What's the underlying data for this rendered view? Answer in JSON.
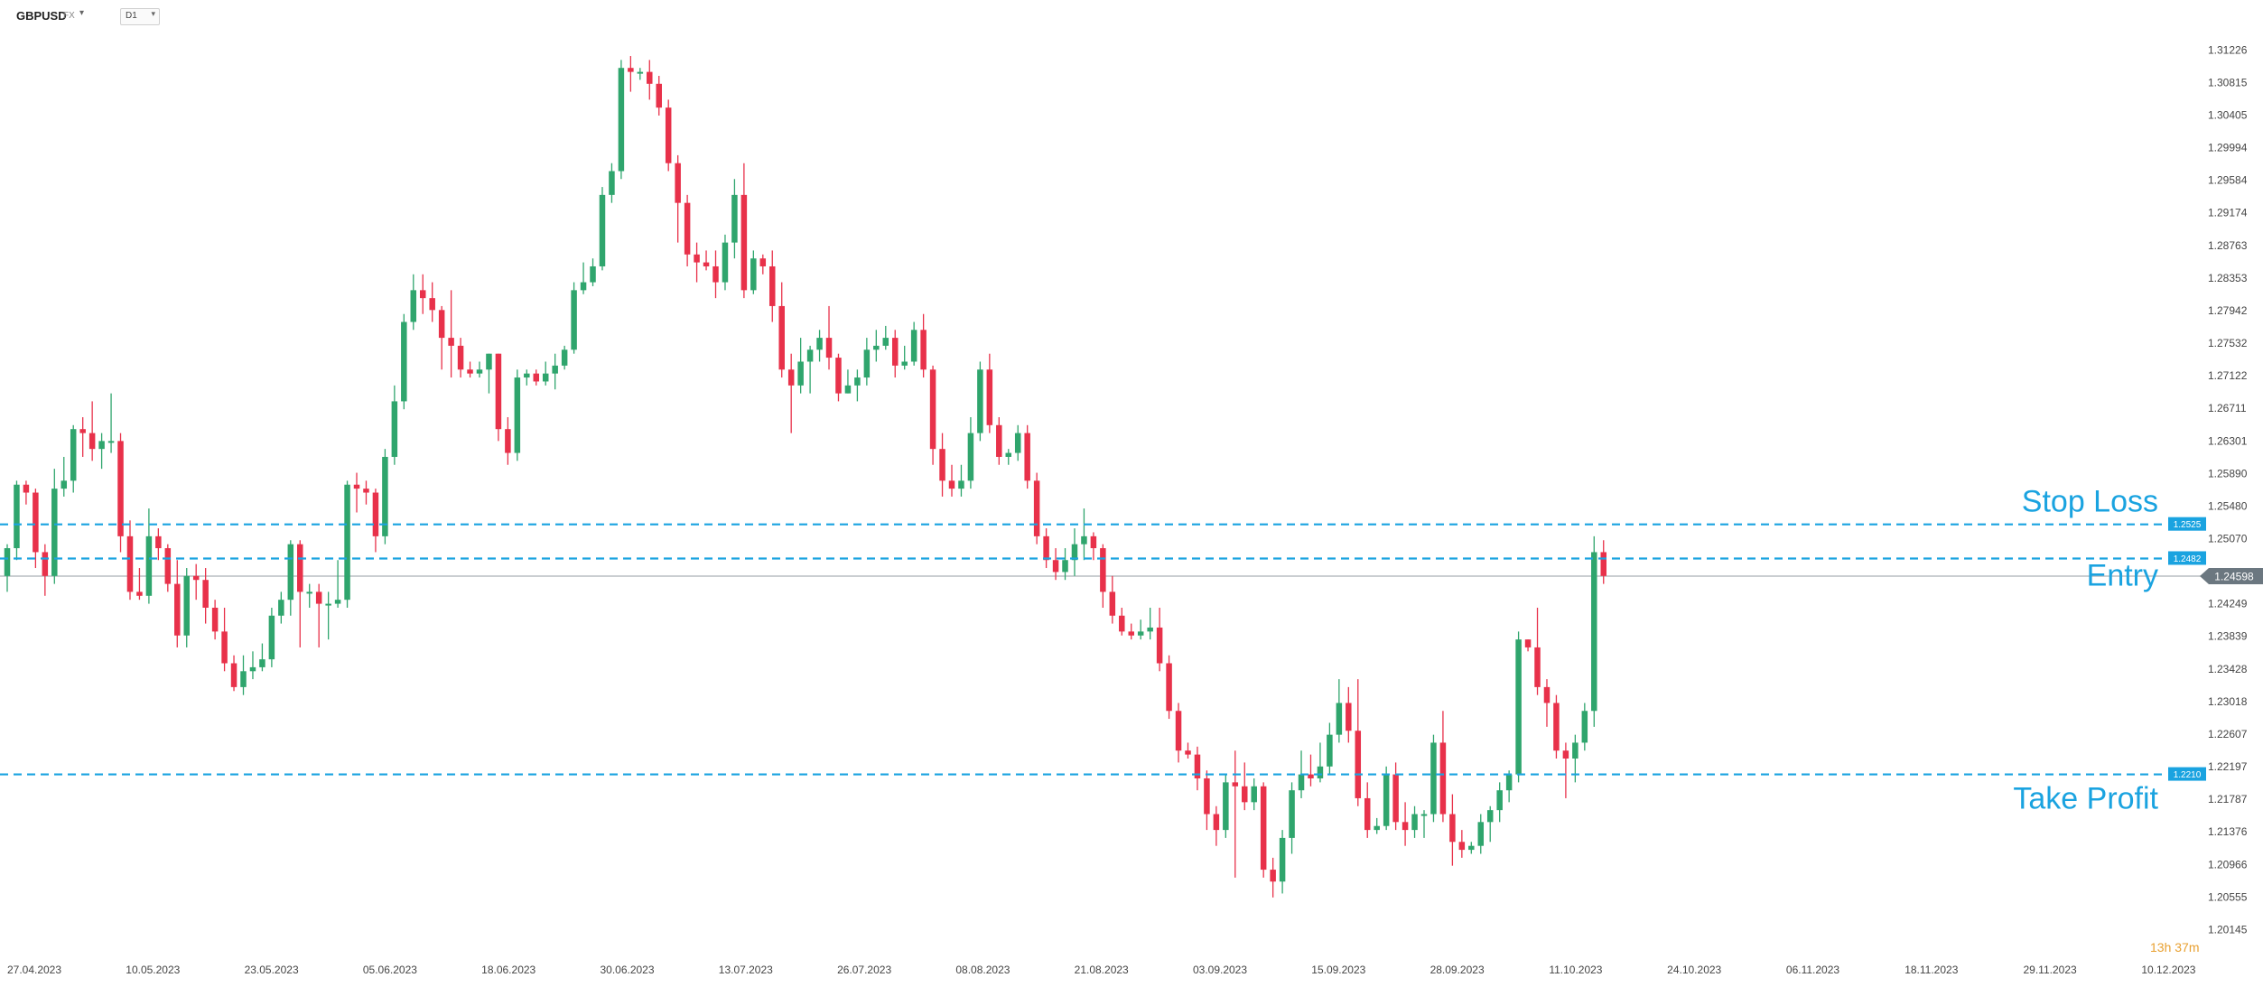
{
  "header": {
    "symbol": "GBPUSD",
    "symbol_type": "FX",
    "timeframe": "D1"
  },
  "countdown": "13h 37m",
  "colors": {
    "up": "#2fa56d",
    "down": "#e8314a",
    "level_line": "#1aa3e0",
    "price_tag_bg": "#6b7780"
  },
  "chart_data": {
    "type": "candlestick",
    "y_ticks": [
      "1.31226",
      "1.30815",
      "1.30405",
      "1.29994",
      "1.29584",
      "1.29174",
      "1.28763",
      "1.28353",
      "1.27942",
      "1.27532",
      "1.27122",
      "1.26711",
      "1.26301",
      "1.25890",
      "1.25480",
      "1.25070",
      "1.24249",
      "1.23839",
      "1.23428",
      "1.23018",
      "1.22607",
      "1.22197",
      "1.21787",
      "1.21376",
      "1.20966",
      "1.20555",
      "1.20145"
    ],
    "x_ticks": [
      "27.04.2023",
      "10.05.2023",
      "23.05.2023",
      "05.06.2023",
      "18.06.2023",
      "30.06.2023",
      "13.07.2023",
      "26.07.2023",
      "08.08.2023",
      "21.08.2023",
      "03.09.2023",
      "15.09.2023",
      "28.09.2023",
      "11.10.2023",
      "24.10.2023",
      "06.11.2023",
      "18.11.2023",
      "29.11.2023",
      "10.12.2023"
    ],
    "ylim": [
      1.2015,
      1.3123
    ],
    "current_price": {
      "value": 1.24598,
      "label": "1.24598"
    },
    "levels": [
      {
        "name": "Stop Loss",
        "value": 1.2525,
        "tag": "1.2525"
      },
      {
        "name": "Entry",
        "value": 1.2482,
        "tag": "1.2482"
      },
      {
        "name": "Take Profit",
        "value": 1.221,
        "tag": "1.2210"
      }
    ],
    "candles": [
      [
        1.246,
        1.2495,
        1.244,
        1.25
      ],
      [
        1.2495,
        1.2575,
        1.248,
        1.258
      ],
      [
        1.2575,
        1.2565,
        1.255,
        1.258
      ],
      [
        1.2565,
        1.249,
        1.247,
        1.257
      ],
      [
        1.249,
        1.246,
        1.2435,
        1.25
      ],
      [
        1.246,
        1.257,
        1.245,
        1.2595
      ],
      [
        1.257,
        1.258,
        1.256,
        1.261
      ],
      [
        1.258,
        1.2645,
        1.2565,
        1.265
      ],
      [
        1.2645,
        1.264,
        1.261,
        1.266
      ],
      [
        1.264,
        1.262,
        1.2605,
        1.268
      ],
      [
        1.262,
        1.263,
        1.2595,
        1.264
      ],
      [
        1.263,
        1.263,
        1.2615,
        1.269
      ],
      [
        1.263,
        1.251,
        1.249,
        1.264
      ],
      [
        1.251,
        1.244,
        1.243,
        1.253
      ],
      [
        1.244,
        1.2435,
        1.243,
        1.247
      ],
      [
        1.2435,
        1.251,
        1.2425,
        1.2545
      ],
      [
        1.251,
        1.2495,
        1.248,
        1.252
      ],
      [
        1.2495,
        1.245,
        1.244,
        1.25
      ],
      [
        1.245,
        1.2385,
        1.237,
        1.248
      ],
      [
        1.2385,
        1.246,
        1.237,
        1.247
      ],
      [
        1.246,
        1.2455,
        1.243,
        1.2475
      ],
      [
        1.2455,
        1.242,
        1.24,
        1.247
      ],
      [
        1.242,
        1.239,
        1.238,
        1.243
      ],
      [
        1.239,
        1.235,
        1.234,
        1.242
      ],
      [
        1.235,
        1.232,
        1.2315,
        1.236
      ],
      [
        1.232,
        1.234,
        1.231,
        1.236
      ],
      [
        1.234,
        1.2345,
        1.233,
        1.2365
      ],
      [
        1.2345,
        1.2355,
        1.234,
        1.2375
      ],
      [
        1.2355,
        1.241,
        1.2345,
        1.242
      ],
      [
        1.241,
        1.243,
        1.24,
        1.244
      ],
      [
        1.243,
        1.25,
        1.241,
        1.2505
      ],
      [
        1.25,
        1.244,
        1.237,
        1.2505
      ],
      [
        1.244,
        1.244,
        1.242,
        1.245
      ],
      [
        1.244,
        1.2425,
        1.237,
        1.245
      ],
      [
        1.2425,
        1.2425,
        1.238,
        1.244
      ],
      [
        1.2425,
        1.243,
        1.242,
        1.248
      ],
      [
        1.243,
        1.2575,
        1.242,
        1.258
      ],
      [
        1.2575,
        1.257,
        1.254,
        1.259
      ],
      [
        1.257,
        1.2565,
        1.255,
        1.258
      ],
      [
        1.2565,
        1.251,
        1.249,
        1.257
      ],
      [
        1.251,
        1.261,
        1.25,
        1.262
      ],
      [
        1.261,
        1.268,
        1.26,
        1.27
      ],
      [
        1.268,
        1.278,
        1.267,
        1.279
      ],
      [
        1.278,
        1.282,
        1.277,
        1.284
      ],
      [
        1.282,
        1.281,
        1.279,
        1.284
      ],
      [
        1.281,
        1.2795,
        1.278,
        1.283
      ],
      [
        1.2795,
        1.276,
        1.272,
        1.28
      ],
      [
        1.276,
        1.275,
        1.271,
        1.282
      ],
      [
        1.275,
        1.272,
        1.271,
        1.276
      ],
      [
        1.272,
        1.2715,
        1.271,
        1.273
      ],
      [
        1.2715,
        1.272,
        1.271,
        1.273
      ],
      [
        1.272,
        1.274,
        1.269,
        1.274
      ],
      [
        1.274,
        1.2645,
        1.263,
        1.274
      ],
      [
        1.2645,
        1.2615,
        1.26,
        1.266
      ],
      [
        1.2615,
        1.271,
        1.2605,
        1.272
      ],
      [
        1.271,
        1.2715,
        1.27,
        1.272
      ],
      [
        1.2715,
        1.2705,
        1.27,
        1.272
      ],
      [
        1.2705,
        1.2715,
        1.27,
        1.273
      ],
      [
        1.2715,
        1.2725,
        1.2695,
        1.274
      ],
      [
        1.2725,
        1.2745,
        1.272,
        1.275
      ],
      [
        1.2745,
        1.282,
        1.274,
        1.283
      ],
      [
        1.282,
        1.283,
        1.2815,
        1.2855
      ],
      [
        1.283,
        1.285,
        1.2825,
        1.286
      ],
      [
        1.285,
        1.294,
        1.2845,
        1.295
      ],
      [
        1.294,
        1.297,
        1.293,
        1.298
      ],
      [
        1.297,
        1.31,
        1.296,
        1.311
      ],
      [
        1.31,
        1.3095,
        1.307,
        1.3115
      ],
      [
        1.3095,
        1.3095,
        1.3085,
        1.31
      ],
      [
        1.3095,
        1.308,
        1.306,
        1.311
      ],
      [
        1.308,
        1.305,
        1.304,
        1.309
      ],
      [
        1.305,
        1.298,
        1.297,
        1.306
      ],
      [
        1.298,
        1.293,
        1.288,
        1.299
      ],
      [
        1.293,
        1.2865,
        1.285,
        1.294
      ],
      [
        1.2865,
        1.2855,
        1.283,
        1.288
      ],
      [
        1.2855,
        1.285,
        1.2845,
        1.287
      ],
      [
        1.285,
        1.283,
        1.281,
        1.287
      ],
      [
        1.283,
        1.288,
        1.282,
        1.289
      ],
      [
        1.288,
        1.294,
        1.286,
        1.296
      ],
      [
        1.294,
        1.282,
        1.281,
        1.298
      ],
      [
        1.282,
        1.286,
        1.2815,
        1.287
      ],
      [
        1.286,
        1.285,
        1.284,
        1.2865
      ],
      [
        1.285,
        1.28,
        1.278,
        1.287
      ],
      [
        1.28,
        1.272,
        1.271,
        1.283
      ],
      [
        1.272,
        1.27,
        1.264,
        1.274
      ],
      [
        1.27,
        1.273,
        1.269,
        1.276
      ],
      [
        1.273,
        1.2745,
        1.269,
        1.275
      ],
      [
        1.2745,
        1.276,
        1.273,
        1.277
      ],
      [
        1.276,
        1.2735,
        1.272,
        1.28
      ],
      [
        1.2735,
        1.269,
        1.268,
        1.274
      ],
      [
        1.269,
        1.27,
        1.269,
        1.272
      ],
      [
        1.27,
        1.271,
        1.268,
        1.272
      ],
      [
        1.271,
        1.2745,
        1.27,
        1.276
      ],
      [
        1.2745,
        1.275,
        1.273,
        1.277
      ],
      [
        1.275,
        1.276,
        1.2745,
        1.2775
      ],
      [
        1.276,
        1.2725,
        1.271,
        1.277
      ],
      [
        1.2725,
        1.273,
        1.272,
        1.275
      ],
      [
        1.273,
        1.277,
        1.2725,
        1.278
      ],
      [
        1.277,
        1.272,
        1.271,
        1.279
      ],
      [
        1.272,
        1.262,
        1.26,
        1.2725
      ],
      [
        1.262,
        1.258,
        1.256,
        1.264
      ],
      [
        1.258,
        1.257,
        1.256,
        1.26
      ],
      [
        1.257,
        1.258,
        1.256,
        1.26
      ],
      [
        1.258,
        1.264,
        1.257,
        1.266
      ],
      [
        1.264,
        1.272,
        1.263,
        1.273
      ],
      [
        1.272,
        1.265,
        1.264,
        1.274
      ],
      [
        1.265,
        1.261,
        1.26,
        1.266
      ],
      [
        1.261,
        1.2615,
        1.26,
        1.262
      ],
      [
        1.2615,
        1.264,
        1.2605,
        1.265
      ],
      [
        1.264,
        1.258,
        1.257,
        1.265
      ],
      [
        1.258,
        1.251,
        1.25,
        1.259
      ],
      [
        1.251,
        1.248,
        1.247,
        1.252
      ],
      [
        1.248,
        1.2465,
        1.2455,
        1.2495
      ],
      [
        1.2465,
        1.248,
        1.2455,
        1.2495
      ],
      [
        1.248,
        1.25,
        1.246,
        1.252
      ],
      [
        1.25,
        1.251,
        1.248,
        1.2545
      ],
      [
        1.251,
        1.2495,
        1.248,
        1.2515
      ],
      [
        1.2495,
        1.244,
        1.242,
        1.25
      ],
      [
        1.244,
        1.241,
        1.24,
        1.246
      ],
      [
        1.241,
        1.239,
        1.2385,
        1.242
      ],
      [
        1.239,
        1.2385,
        1.238,
        1.24
      ],
      [
        1.2385,
        1.239,
        1.238,
        1.2405
      ],
      [
        1.239,
        1.2395,
        1.238,
        1.242
      ],
      [
        1.2395,
        1.235,
        1.234,
        1.242
      ],
      [
        1.235,
        1.229,
        1.228,
        1.236
      ],
      [
        1.229,
        1.224,
        1.2225,
        1.23
      ],
      [
        1.224,
        1.2235,
        1.223,
        1.225
      ],
      [
        1.2235,
        1.2205,
        1.219,
        1.2245
      ],
      [
        1.2205,
        1.216,
        1.214,
        1.2215
      ],
      [
        1.216,
        1.214,
        1.212,
        1.217
      ],
      [
        1.214,
        1.22,
        1.213,
        1.221
      ],
      [
        1.22,
        1.2195,
        1.208,
        1.224
      ],
      [
        1.2195,
        1.2175,
        1.2165,
        1.2225
      ],
      [
        1.2175,
        1.2195,
        1.2165,
        1.2205
      ],
      [
        1.2195,
        1.209,
        1.208,
        1.22
      ],
      [
        1.209,
        1.2075,
        1.2055,
        1.2105
      ],
      [
        1.2075,
        1.213,
        1.206,
        1.214
      ],
      [
        1.213,
        1.219,
        1.211,
        1.22
      ],
      [
        1.219,
        1.221,
        1.218,
        1.224
      ],
      [
        1.221,
        1.2205,
        1.2195,
        1.2235
      ],
      [
        1.2205,
        1.222,
        1.22,
        1.225
      ],
      [
        1.222,
        1.226,
        1.221,
        1.2275
      ],
      [
        1.226,
        1.23,
        1.225,
        1.233
      ],
      [
        1.23,
        1.2265,
        1.225,
        1.232
      ],
      [
        1.2265,
        1.218,
        1.217,
        1.233
      ],
      [
        1.218,
        1.214,
        1.213,
        1.22
      ],
      [
        1.214,
        1.2145,
        1.2135,
        1.2155
      ],
      [
        1.2145,
        1.221,
        1.214,
        1.222
      ],
      [
        1.221,
        1.215,
        1.214,
        1.2225
      ],
      [
        1.215,
        1.214,
        1.212,
        1.2175
      ],
      [
        1.214,
        1.216,
        1.213,
        1.217
      ],
      [
        1.216,
        1.216,
        1.213,
        1.2165
      ],
      [
        1.216,
        1.225,
        1.215,
        1.226
      ],
      [
        1.225,
        1.216,
        1.215,
        1.229
      ],
      [
        1.216,
        1.2125,
        1.2095,
        1.2185
      ],
      [
        1.2125,
        1.2115,
        1.2105,
        1.214
      ],
      [
        1.2115,
        1.212,
        1.211,
        1.2125
      ],
      [
        1.212,
        1.215,
        1.211,
        1.216
      ],
      [
        1.215,
        1.2165,
        1.2125,
        1.217
      ],
      [
        1.2165,
        1.219,
        1.215,
        1.22
      ],
      [
        1.219,
        1.221,
        1.2175,
        1.2215
      ],
      [
        1.221,
        1.238,
        1.22,
        1.239
      ],
      [
        1.238,
        1.237,
        1.2365,
        1.238
      ],
      [
        1.237,
        1.232,
        1.231,
        1.242
      ],
      [
        1.232,
        1.23,
        1.227,
        1.233
      ],
      [
        1.23,
        1.224,
        1.223,
        1.231
      ],
      [
        1.224,
        1.223,
        1.218,
        1.225
      ],
      [
        1.223,
        1.225,
        1.22,
        1.226
      ],
      [
        1.225,
        1.229,
        1.224,
        1.23
      ],
      [
        1.229,
        1.249,
        1.227,
        1.251
      ],
      [
        1.249,
        1.246,
        1.245,
        1.2505
      ]
    ]
  }
}
